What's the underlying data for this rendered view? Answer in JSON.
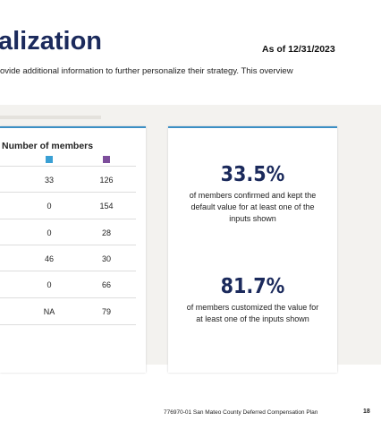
{
  "header": {
    "title": "alization",
    "as_of": "As of 12/31/2023",
    "subtitle": "ovide additional information to further personalize their strategy. This overview"
  },
  "table": {
    "header": "Number of members",
    "rows": [
      [
        "33",
        "126"
      ],
      [
        "0",
        "154"
      ],
      [
        "0",
        "28"
      ],
      [
        "46",
        "30"
      ],
      [
        "0",
        "66"
      ],
      [
        "NA",
        "79"
      ]
    ]
  },
  "stats": [
    {
      "value": "33.5%",
      "text": "of members confirmed and kept the default value for at least one of the inputs shown"
    },
    {
      "value": "81.7%",
      "text": "of members customized the value for at least one of the inputs shown"
    }
  ],
  "footer": {
    "text": "776970-01 San Mateo County Deferred Compensation Plan",
    "page": "18"
  }
}
